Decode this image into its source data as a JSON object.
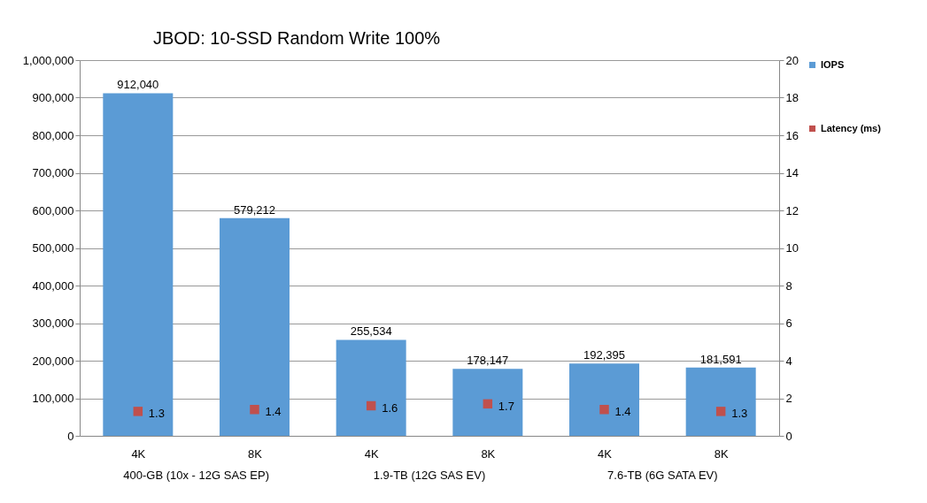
{
  "chart_data": {
    "type": "bar",
    "title": "JBOD: 10-SSD Random Write 100%",
    "categories": [
      "4K",
      "8K",
      "4K",
      "8K",
      "4K",
      "8K"
    ],
    "series": [
      {
        "name": "IOPS",
        "color": "#5b9bd5",
        "values": [
          912040,
          579212,
          255534,
          178147,
          192395,
          181591
        ],
        "value_labels": [
          "912,040",
          "579,212",
          "255,534",
          "178,147",
          "192,395",
          "181,591"
        ]
      },
      {
        "name": "Latency (ms)",
        "type": "scatter",
        "axis": "y2",
        "color": "#c0504d",
        "values": [
          1.3,
          1.4,
          1.6,
          1.7,
          1.4,
          1.3
        ]
      }
    ],
    "ylim": [
      0,
      1000000
    ],
    "yticks": [
      0,
      {
        "value": 100000,
        "label": "100,000"
      },
      {
        "value": 200000,
        "label": "200,000"
      },
      {
        "value": 300000,
        "label": "300,000"
      },
      {
        "value": 400000,
        "label": "400,000"
      },
      {
        "value": 500000,
        "label": "500,000"
      },
      {
        "value": 600000,
        "label": "600,000"
      },
      {
        "value": 700000,
        "label": "700,000"
      },
      {
        "value": 800000,
        "label": "800,000"
      },
      {
        "value": 900000,
        "label": "900,000"
      },
      {
        "value": 1000000,
        "label": "1,000,000"
      }
    ],
    "y2lim": [
      0,
      20
    ],
    "y2ticks": [
      0,
      2,
      4,
      6,
      8,
      10,
      12,
      14,
      16,
      18,
      20
    ],
    "grid": "y",
    "legend": "right",
    "marker": "square",
    "data_labels": true,
    "annotations": [
      "400-GB (10x - 12G SAS EP)",
      "1.9-TB (12G SAS EV)",
      "7.6-TB (6G SATA EV)"
    ]
  }
}
